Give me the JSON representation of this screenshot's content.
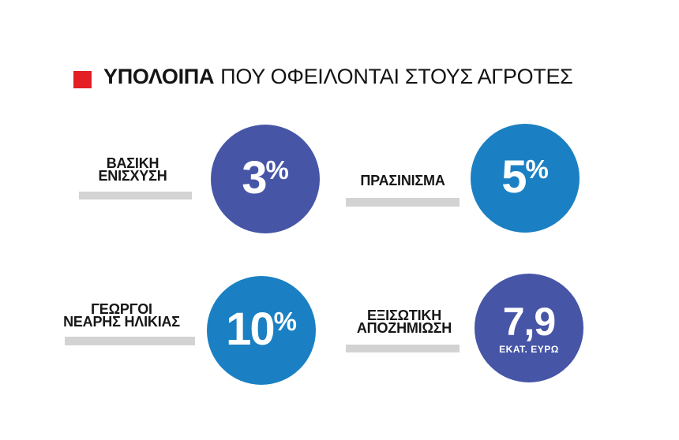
{
  "header": {
    "title_bold": "ΥΠΟΛΟΙΠΑ",
    "title_rest": "ΠΟΥ ΟΦΕΙΛΟΝΤΑΙ ΣΤΟΥΣ ΑΓΡΟΤΕΣ",
    "bullet_color": "#e31e25"
  },
  "colors": {
    "accent_red": "#e31e25",
    "circle_indigo": "#4655a6",
    "circle_blue": "#1a80c3",
    "bar_gray": "#d3d3d3",
    "text_black": "#151515",
    "value_white": "#ffffff"
  },
  "items": [
    {
      "label1": "ΒΑΣΙΚΗ",
      "label2": "ΕΝΙΣΧΥΣΗ",
      "value": "3",
      "suffix": "%",
      "unit": "",
      "circle_color": "#4655a6"
    },
    {
      "label1": "ΠΡΑΣΙΝΙΣΜΑ",
      "label2": "",
      "value": "5",
      "suffix": "%",
      "unit": "",
      "circle_color": "#1a80c3"
    },
    {
      "label1": "ΓΕΩΡΓΟΙ",
      "label2": "ΝΕΑΡΗΣ ΗΛΙΚΙΑΣ",
      "value": "10",
      "suffix": "%",
      "unit": "",
      "circle_color": "#1a80c3"
    },
    {
      "label1": "ΕΞΙΣΩΤΙΚΗ",
      "label2": "ΑΠΟΖΗΜΙΩΣΗ",
      "value": "7,9",
      "suffix": "",
      "unit": "ΕΚΑΤ. ΕΥΡΩ",
      "circle_color": "#4655a6"
    }
  ],
  "chart_data": {
    "type": "table",
    "title": "ΥΠΟΛΟΙΠΑ ΠΟΥ ΟΦΕΙΛΟΝΤΑΙ ΣΤΟΥΣ ΑΓΡΟΤΕΣ",
    "categories": [
      "ΒΑΣΙΚΗ ΕΝΙΣΧΥΣΗ",
      "ΠΡΑΣΙΝΙΣΜΑ",
      "ΓΕΩΡΓΟΙ ΝΕΑΡΗΣ ΗΛΙΚΙΑΣ",
      "ΕΞΙΣΩΤΙΚΗ ΑΠΟΖΗΜΙΩΣΗ"
    ],
    "values": [
      3,
      5,
      10,
      7.9
    ],
    "value_labels": [
      "3%",
      "5%",
      "10%",
      "7,9 ΕΚΑΤ. ΕΥΡΩ"
    ],
    "units": [
      "%",
      "%",
      "%",
      "ΕΚΑΤ. ΕΥΡΩ"
    ],
    "circle_colors": [
      "#4655a6",
      "#1a80c3",
      "#1a80c3",
      "#4655a6"
    ],
    "legend_position": "none",
    "grid": false
  }
}
